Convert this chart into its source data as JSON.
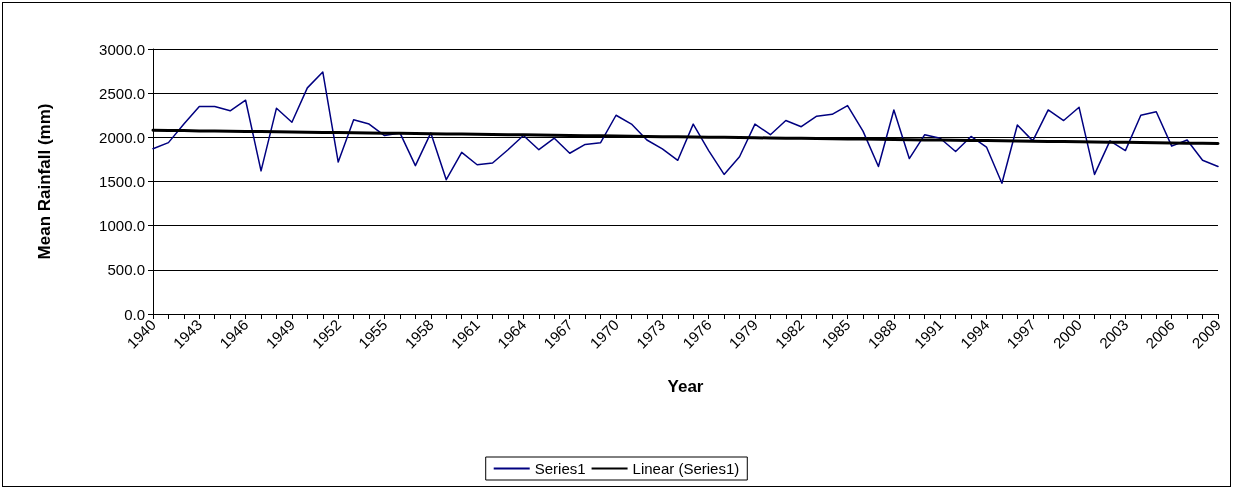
{
  "chart_data": {
    "type": "line",
    "xlabel": "Year",
    "ylabel": "Mean Rainfall (mm)",
    "categories": [
      "1940",
      null,
      null,
      "1943",
      null,
      null,
      "1946",
      null,
      null,
      "1949",
      null,
      null,
      "1952",
      null,
      null,
      "1955",
      null,
      null,
      "1958",
      null,
      null,
      "1961",
      null,
      null,
      "1964",
      null,
      null,
      "1967",
      null,
      null,
      "1970",
      null,
      null,
      "1973",
      null,
      null,
      "1976",
      null,
      null,
      "1979",
      null,
      null,
      "1982",
      null,
      null,
      "1985",
      null,
      null,
      "1988",
      null,
      null,
      "1991",
      null,
      null,
      "1994",
      null,
      null,
      "1997",
      null,
      null,
      "2000",
      null,
      null,
      "2003",
      null,
      null,
      "2006",
      null,
      null,
      "2009"
    ],
    "series": [
      {
        "name": "Series1",
        "color": "#000080",
        "values": [
          1870,
          1940,
          2150,
          2350,
          2350,
          2300,
          2420,
          1620,
          2330,
          2170,
          2560,
          2740,
          1720,
          2200,
          2150,
          2020,
          2050,
          1680,
          2050,
          1520,
          1830,
          1690,
          1710,
          1860,
          2020,
          1860,
          1990,
          1820,
          1920,
          1940,
          2250,
          2150,
          1970,
          1870,
          1740,
          2150,
          1850,
          1580,
          1780,
          2150,
          2030,
          2190,
          2120,
          2240,
          2260,
          2360,
          2070,
          1670,
          2310,
          1760,
          2030,
          1990,
          1840,
          2010,
          1890,
          1480,
          2140,
          1960,
          2310,
          2190,
          2340,
          1580,
          1960,
          1850,
          2250,
          2290,
          1900,
          1970,
          1740,
          1670
        ]
      },
      {
        "name": "Linear (Series1)",
        "color": "#000000",
        "values": [
          2080,
          2078,
          2076,
          2073,
          2071,
          2069,
          2067,
          2065,
          2063,
          2060,
          2058,
          2056,
          2054,
          2052,
          2050,
          2047,
          2045,
          2043,
          2041,
          2039,
          2037,
          2034,
          2032,
          2030,
          2028,
          2026,
          2023,
          2021,
          2019,
          2017,
          2015,
          2013,
          2010,
          2008,
          2006,
          2004,
          2002,
          2000,
          1997,
          1995,
          1993,
          1991,
          1989,
          1987,
          1984,
          1982,
          1980,
          1978,
          1976,
          1973,
          1971,
          1969,
          1967,
          1965,
          1963,
          1960,
          1958,
          1956,
          1954,
          1952,
          1950,
          1947,
          1945,
          1943,
          1941,
          1939,
          1937,
          1934,
          1932,
          1930
        ]
      }
    ],
    "ylim": [
      0,
      3000
    ],
    "yticks": [
      {
        "value": 0,
        "label": "0.0"
      },
      {
        "value": 500,
        "label": "500.0"
      },
      {
        "value": 1000,
        "label": "1000.0"
      },
      {
        "value": 1500,
        "label": "1500.0"
      },
      {
        "value": 2000,
        "label": "2000.0"
      },
      {
        "value": 2500,
        "label": "2500.0"
      },
      {
        "value": 3000,
        "label": "3000.0"
      }
    ],
    "grid": "y",
    "legend": "bottom",
    "marker": "none",
    "line_style": "solid"
  }
}
